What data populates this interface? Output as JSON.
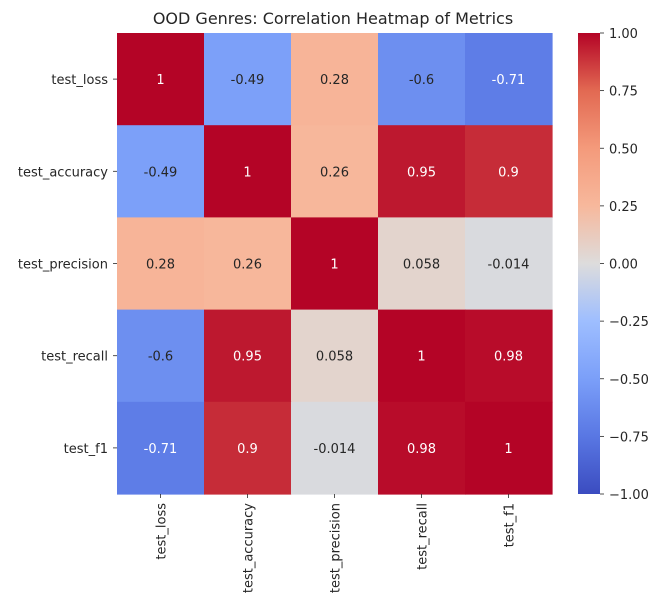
{
  "chart_data": {
    "type": "heatmap",
    "title": "OOD Genres: Correlation Heatmap of Metrics",
    "rows": [
      "test_loss",
      "test_accuracy",
      "test_precision",
      "test_recall",
      "test_f1"
    ],
    "columns": [
      "test_loss",
      "test_accuracy",
      "test_precision",
      "test_recall",
      "test_f1"
    ],
    "values": [
      [
        1,
        -0.49,
        0.28,
        -0.6,
        -0.71
      ],
      [
        -0.49,
        1,
        0.26,
        0.95,
        0.9
      ],
      [
        0.28,
        0.26,
        1,
        0.058,
        -0.014
      ],
      [
        -0.6,
        0.95,
        0.058,
        1,
        0.98
      ],
      [
        -0.71,
        0.9,
        -0.014,
        0.98,
        1
      ]
    ],
    "annotations": [
      [
        "1",
        "-0.49",
        "0.28",
        "-0.6",
        "-0.71"
      ],
      [
        "-0.49",
        "1",
        "0.26",
        "0.95",
        "0.9"
      ],
      [
        "0.28",
        "0.26",
        "1",
        "0.058",
        "-0.014"
      ],
      [
        "-0.6",
        "0.95",
        "0.058",
        "1",
        "0.98"
      ],
      [
        "-0.71",
        "0.9",
        "-0.014",
        "0.98",
        "1"
      ]
    ],
    "colormap": "coolwarm",
    "vmin": -1.0,
    "vmax": 1.0,
    "colorbar_ticks": [
      "1.00",
      "0.75",
      "0.50",
      "0.25",
      "0.00",
      "−0.25",
      "−0.50",
      "−0.75",
      "−1.00"
    ],
    "colorbar_tick_values": [
      1.0,
      0.75,
      0.5,
      0.25,
      0.0,
      -0.25,
      -0.5,
      -0.75,
      -1.0
    ],
    "grid": false,
    "legend": "colorbar-right"
  }
}
